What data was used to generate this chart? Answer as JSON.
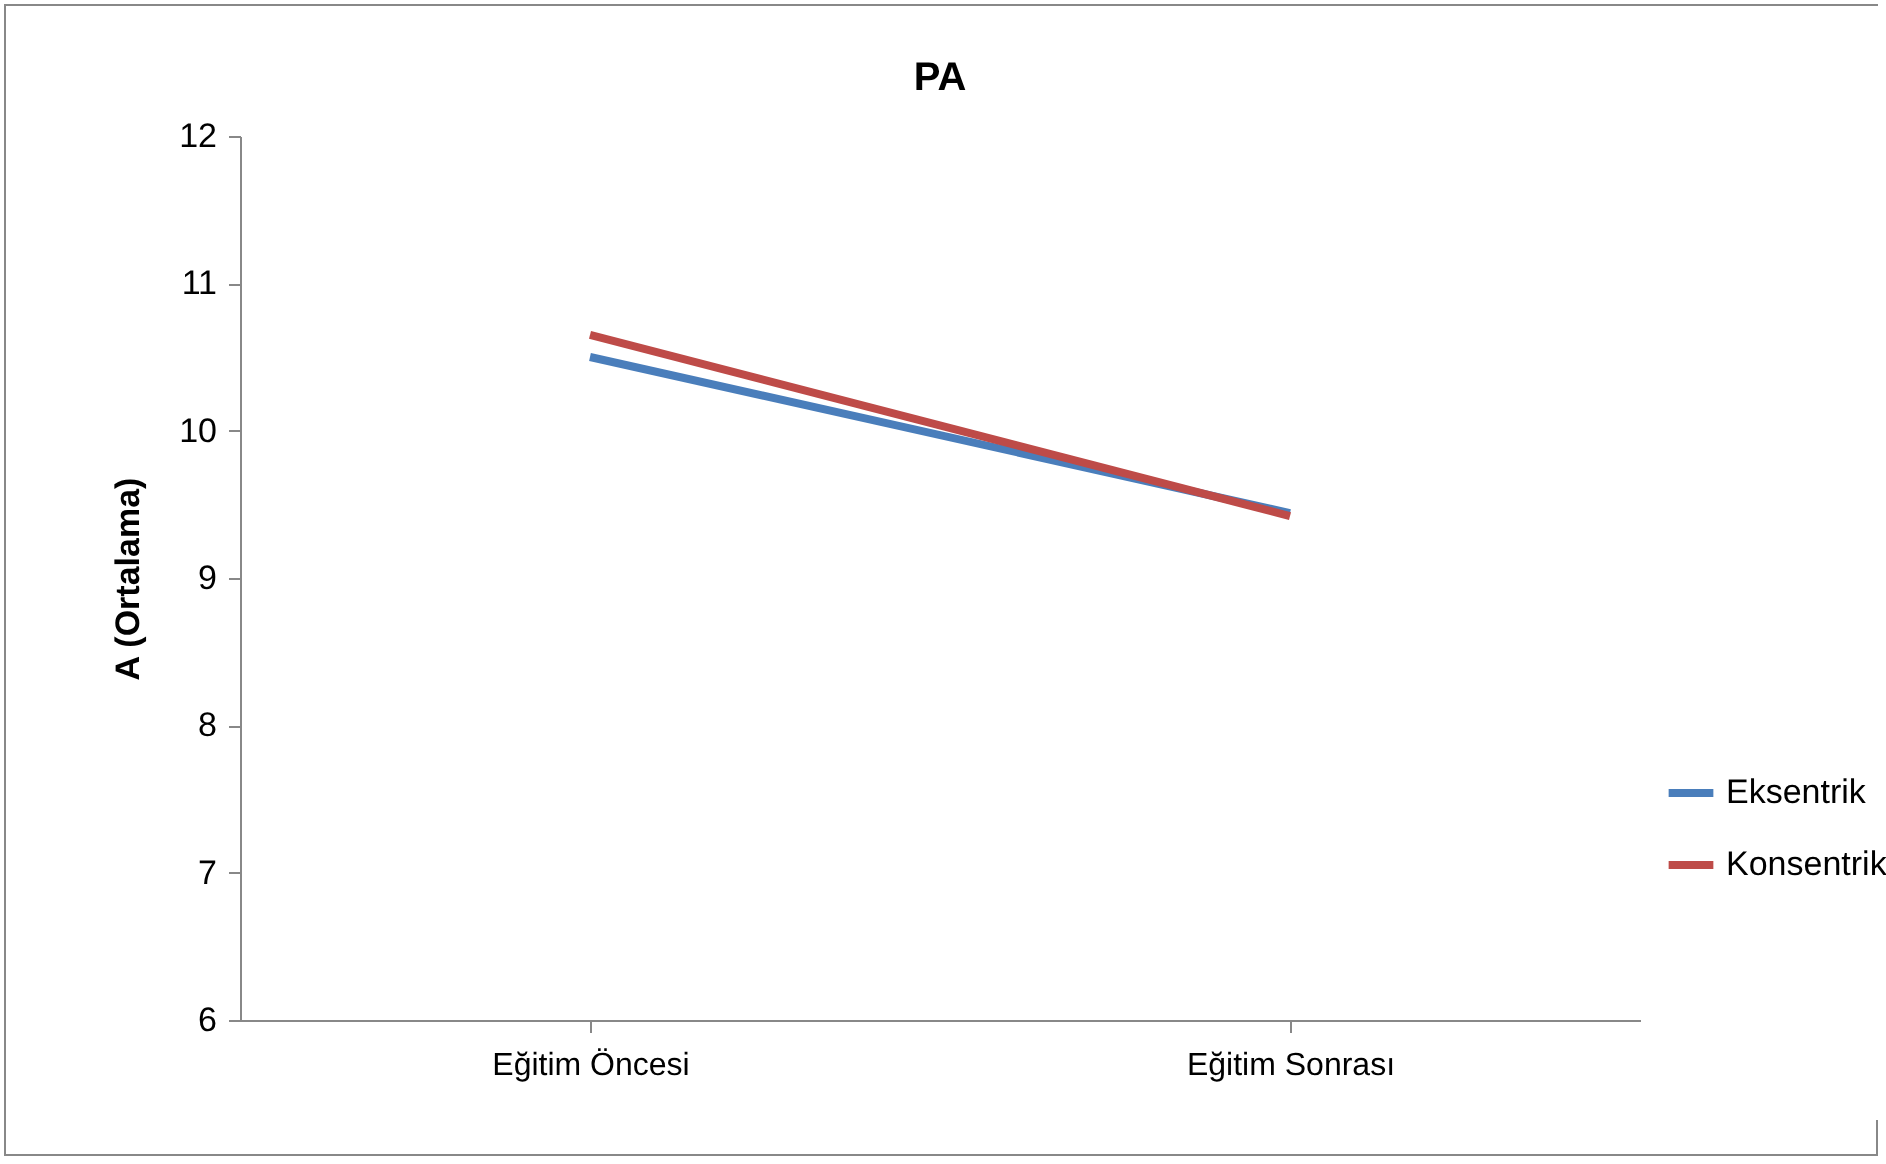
{
  "chart_data": {
    "type": "line",
    "title": "PA",
    "ylabel": "A (Ortalama)",
    "categories": [
      "Eğitim Öncesi",
      "Eğitim Sonrası"
    ],
    "series": [
      {
        "name": "Eksentrik",
        "color": "#4a7ebb",
        "values": [
          10.5,
          9.44
        ]
      },
      {
        "name": "Konsentrik",
        "color": "#be4b48",
        "values": [
          10.65,
          9.42
        ]
      }
    ],
    "ylim": [
      6,
      12
    ],
    "yticks": [
      6,
      7,
      8,
      9,
      10,
      11,
      12
    ],
    "grid": false,
    "legend": "right",
    "marker": "none"
  }
}
